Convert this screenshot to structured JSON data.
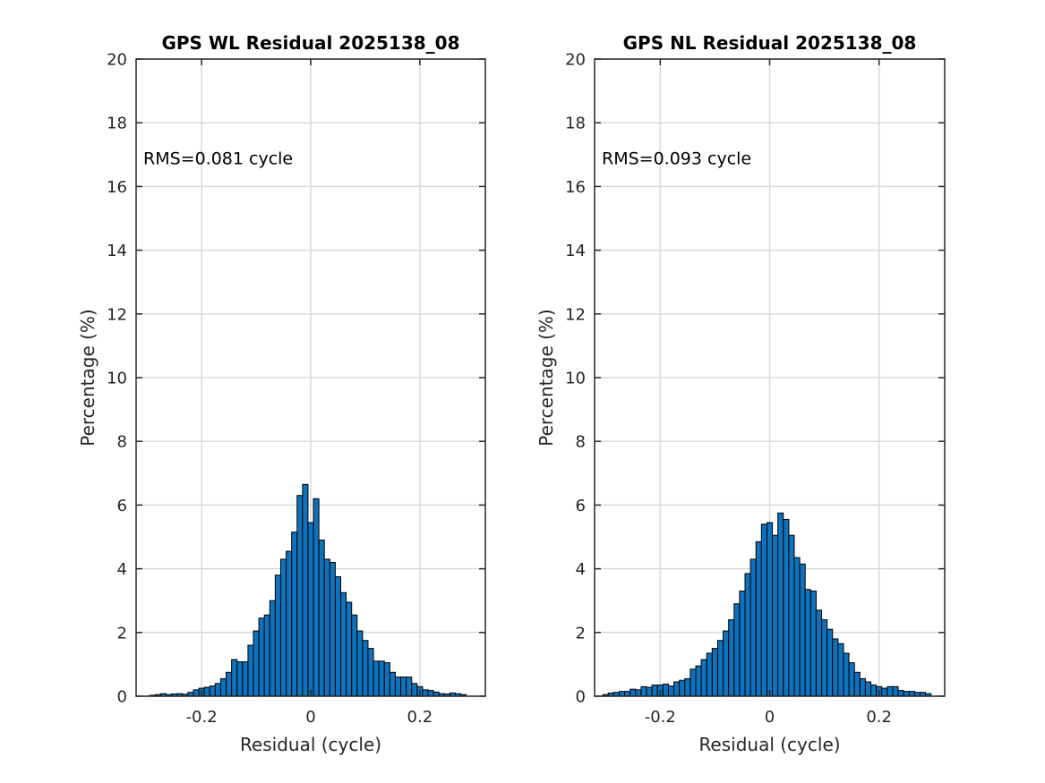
{
  "chart_data": [
    {
      "type": "bar",
      "title": "GPS WL Residual 2025138_08",
      "xlabel": "Residual (cycle)",
      "ylabel": "Percentage (%)",
      "annotation": "RMS=0.081 cycle",
      "xlim": [
        -0.32,
        0.32
      ],
      "ylim": [
        0,
        20
      ],
      "xticks": [
        -0.2,
        0,
        0.2
      ],
      "xtick_labels": [
        "-0.2",
        "0",
        "0.2"
      ],
      "yticks": [
        0,
        2,
        4,
        6,
        8,
        10,
        12,
        14,
        16,
        18,
        20
      ],
      "ytick_labels": [
        "0",
        "2",
        "4",
        "6",
        "8",
        "10",
        "12",
        "14",
        "16",
        "18",
        "20"
      ],
      "grid": true,
      "bin_width": 0.01,
      "x": [
        -0.29,
        -0.28,
        -0.27,
        -0.26,
        -0.25,
        -0.24,
        -0.23,
        -0.22,
        -0.21,
        -0.2,
        -0.19,
        -0.18,
        -0.17,
        -0.16,
        -0.15,
        -0.14,
        -0.13,
        -0.12,
        -0.11,
        -0.1,
        -0.09,
        -0.08,
        -0.07,
        -0.06,
        -0.05,
        -0.04,
        -0.03,
        -0.02,
        -0.01,
        0.0,
        0.01,
        0.02,
        0.03,
        0.04,
        0.05,
        0.06,
        0.07,
        0.08,
        0.09,
        0.1,
        0.11,
        0.12,
        0.13,
        0.14,
        0.15,
        0.16,
        0.17,
        0.18,
        0.19,
        0.2,
        0.21,
        0.22,
        0.23,
        0.24,
        0.25,
        0.26,
        0.27,
        0.28
      ],
      "values": [
        0.03,
        0.05,
        0.08,
        0.05,
        0.07,
        0.08,
        0.06,
        0.12,
        0.2,
        0.25,
        0.28,
        0.32,
        0.4,
        0.55,
        0.75,
        1.15,
        1.08,
        1.08,
        1.6,
        2.05,
        2.45,
        2.55,
        3.0,
        3.8,
        4.3,
        4.55,
        5.15,
        6.3,
        6.65,
        5.45,
        6.2,
        4.9,
        4.3,
        4.2,
        3.75,
        3.25,
        2.95,
        2.55,
        2.05,
        1.75,
        1.5,
        1.1,
        1.1,
        1.05,
        0.75,
        0.6,
        0.6,
        0.6,
        0.4,
        0.3,
        0.2,
        0.18,
        0.13,
        0.08,
        0.07,
        0.1,
        0.08,
        0.05
      ]
    },
    {
      "type": "bar",
      "title": "GPS NL Residual 2025138_08",
      "xlabel": "Residual (cycle)",
      "ylabel": "Percentage (%)",
      "annotation": "RMS=0.093 cycle",
      "xlim": [
        -0.32,
        0.32
      ],
      "ylim": [
        0,
        20
      ],
      "xticks": [
        -0.2,
        0,
        0.2
      ],
      "xtick_labels": [
        "-0.2",
        "0",
        "0.2"
      ],
      "yticks": [
        0,
        2,
        4,
        6,
        8,
        10,
        12,
        14,
        16,
        18,
        20
      ],
      "ytick_labels": [
        "0",
        "2",
        "4",
        "6",
        "8",
        "10",
        "12",
        "14",
        "16",
        "18",
        "20"
      ],
      "grid": true,
      "bin_width": 0.01,
      "x": [
        -0.3,
        -0.29,
        -0.28,
        -0.27,
        -0.26,
        -0.25,
        -0.24,
        -0.23,
        -0.22,
        -0.21,
        -0.2,
        -0.19,
        -0.18,
        -0.17,
        -0.16,
        -0.15,
        -0.14,
        -0.13,
        -0.12,
        -0.11,
        -0.1,
        -0.09,
        -0.08,
        -0.07,
        -0.06,
        -0.05,
        -0.04,
        -0.03,
        -0.02,
        -0.01,
        0.0,
        0.01,
        0.02,
        0.03,
        0.04,
        0.05,
        0.06,
        0.07,
        0.08,
        0.09,
        0.1,
        0.11,
        0.12,
        0.13,
        0.14,
        0.15,
        0.16,
        0.17,
        0.18,
        0.19,
        0.2,
        0.21,
        0.22,
        0.23,
        0.24,
        0.25,
        0.26,
        0.27,
        0.28,
        0.29
      ],
      "values": [
        0.05,
        0.1,
        0.12,
        0.15,
        0.15,
        0.22,
        0.2,
        0.3,
        0.28,
        0.35,
        0.35,
        0.38,
        0.32,
        0.45,
        0.5,
        0.55,
        0.85,
        0.95,
        1.15,
        1.35,
        1.5,
        1.75,
        2.05,
        2.4,
        2.9,
        3.3,
        3.85,
        4.3,
        4.85,
        5.4,
        5.45,
        5.05,
        5.75,
        5.55,
        5.05,
        4.35,
        4.15,
        3.35,
        3.3,
        2.7,
        2.4,
        2.1,
        1.8,
        1.65,
        1.35,
        1.05,
        0.75,
        0.55,
        0.45,
        0.35,
        0.3,
        0.25,
        0.3,
        0.3,
        0.18,
        0.15,
        0.15,
        0.12,
        0.12,
        0.08
      ]
    }
  ]
}
